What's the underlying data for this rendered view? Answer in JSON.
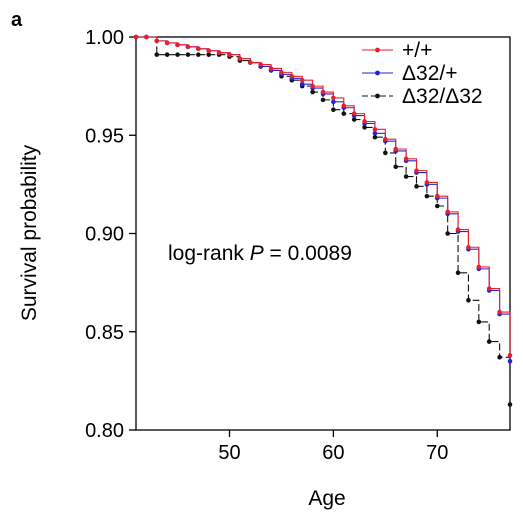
{
  "chart_data": {
    "type": "line",
    "panel_label": "a",
    "xlabel": "Age",
    "ylabel": "Survival probability",
    "xlim": [
      41,
      77
    ],
    "ylim": [
      0.8,
      1.0
    ],
    "xticks": [
      50,
      60,
      70
    ],
    "yticks": [
      0.8,
      0.85,
      0.9,
      0.95,
      1.0
    ],
    "ytick_labels": [
      "0.80",
      "0.85",
      "0.90",
      "0.95",
      "1.00"
    ],
    "grid": false,
    "legend_position": "top-right",
    "annotation": {
      "prefix": "log-rank ",
      "italic": "P",
      "suffix": " = 0.0089"
    },
    "x": [
      41,
      42,
      43,
      44,
      45,
      46,
      47,
      48,
      49,
      50,
      51,
      52,
      53,
      54,
      55,
      56,
      57,
      58,
      59,
      60,
      61,
      62,
      63,
      64,
      65,
      66,
      67,
      68,
      69,
      70,
      71,
      72,
      73,
      74,
      75,
      76,
      77
    ],
    "series": [
      {
        "name": "+/+",
        "color": "#e8202a",
        "dash": false,
        "values": [
          1.0,
          1.0,
          0.998,
          0.997,
          0.996,
          0.995,
          0.994,
          0.993,
          0.992,
          0.991,
          0.989,
          0.987,
          0.986,
          0.984,
          0.982,
          0.98,
          0.978,
          0.975,
          0.972,
          0.969,
          0.965,
          0.961,
          0.957,
          0.953,
          0.948,
          0.943,
          0.938,
          0.932,
          0.926,
          0.919,
          0.911,
          0.902,
          0.893,
          0.883,
          0.872,
          0.86,
          0.838
        ]
      },
      {
        "name": "Δ32/+",
        "color": "#2323d6",
        "dash": false,
        "values": [
          1.0,
          1.0,
          0.998,
          0.997,
          0.996,
          0.995,
          0.994,
          0.993,
          0.992,
          0.991,
          0.989,
          0.987,
          0.985,
          0.983,
          0.981,
          0.979,
          0.976,
          0.974,
          0.971,
          0.967,
          0.964,
          0.96,
          0.956,
          0.951,
          0.947,
          0.942,
          0.937,
          0.931,
          0.925,
          0.918,
          0.91,
          0.901,
          0.892,
          0.882,
          0.871,
          0.859,
          0.835
        ]
      },
      {
        "name": "Δ32/Δ32",
        "color": "#111111",
        "dash": true,
        "values": [
          1.0,
          1.0,
          0.991,
          0.991,
          0.991,
          0.991,
          0.991,
          0.991,
          0.991,
          0.99,
          0.988,
          0.987,
          0.985,
          0.983,
          0.98,
          0.978,
          0.975,
          0.972,
          0.968,
          0.963,
          0.961,
          0.958,
          0.954,
          0.949,
          0.941,
          0.934,
          0.929,
          0.924,
          0.919,
          0.914,
          0.9,
          0.88,
          0.866,
          0.855,
          0.845,
          0.837,
          0.813
        ]
      }
    ]
  }
}
